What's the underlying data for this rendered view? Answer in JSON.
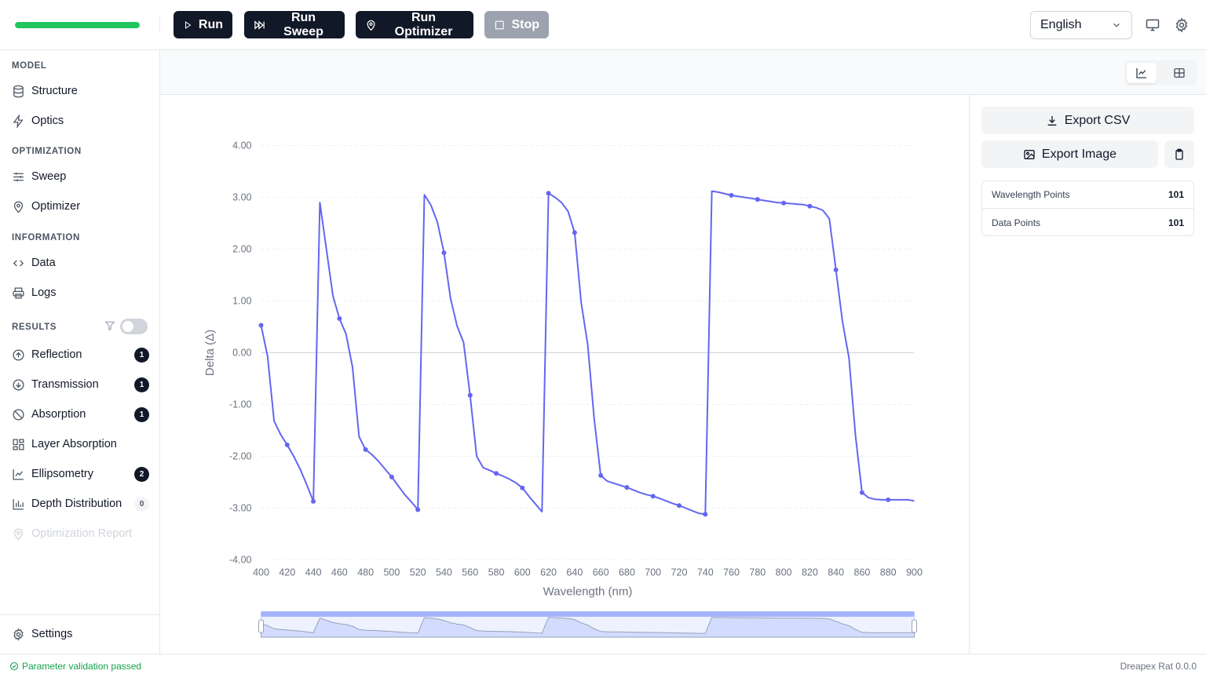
{
  "toolbar": {
    "progress_fraction": 1.0,
    "run_label": "Run",
    "run_sweep_label": "Run Sweep",
    "run_optimizer_label": "Run Optimizer",
    "stop_label": "Stop",
    "language": "English"
  },
  "sidebar": {
    "model_section": "MODEL",
    "model_items": [
      {
        "label": "Structure"
      },
      {
        "label": "Optics"
      }
    ],
    "optimization_section": "OPTIMIZATION",
    "optimization_items": [
      {
        "label": "Sweep"
      },
      {
        "label": "Optimizer"
      }
    ],
    "information_section": "INFORMATION",
    "information_items": [
      {
        "label": "Data"
      },
      {
        "label": "Logs"
      }
    ],
    "results_section": "RESULTS",
    "results_items": [
      {
        "label": "Reflection",
        "badge": "1"
      },
      {
        "label": "Transmission",
        "badge": "1"
      },
      {
        "label": "Absorption",
        "badge": "1"
      },
      {
        "label": "Layer Absorption",
        "badge": ""
      },
      {
        "label": "Ellipsometry",
        "badge": "2"
      },
      {
        "label": "Depth Distribution",
        "badge": "0"
      },
      {
        "label": "Optimization Report",
        "badge": ""
      }
    ],
    "settings_label": "Settings"
  },
  "right_panel": {
    "export_csv": "Export CSV",
    "export_image": "Export Image",
    "stats": [
      {
        "label": "Wavelength Points",
        "value": "101"
      },
      {
        "label": "Data Points",
        "value": "101"
      }
    ]
  },
  "status": {
    "message": "Parameter validation passed",
    "version": "Dreapex Rat 0.0.0"
  },
  "colors": {
    "accent": "#6366f1",
    "progress": "#22c55e",
    "primary_button": "#111827",
    "status_ok": "#16a34a"
  },
  "chart_data": {
    "type": "line",
    "xlabel": "Wavelength (nm)",
    "ylabel": "Delta (Δ)",
    "xlim": [
      400,
      900
    ],
    "ylim": [
      -4,
      4
    ],
    "x_ticks": [
      "400",
      "420",
      "440",
      "460",
      "480",
      "500",
      "520",
      "540",
      "560",
      "580",
      "600",
      "620",
      "640",
      "660",
      "680",
      "700",
      "720",
      "740",
      "760",
      "780",
      "800",
      "820",
      "840",
      "860",
      "880",
      "900"
    ],
    "y_ticks": [
      "4.00",
      "3.00",
      "2.00",
      "1.00",
      "0.00",
      "-1.00",
      "-2.00",
      "-3.00",
      "-4.00"
    ],
    "grid": true,
    "series": [
      {
        "name": "",
        "color": "#6366f1",
        "x": [
          400,
          405,
          410,
          415,
          420,
          425,
          430,
          435,
          440,
          445,
          450,
          455,
          460,
          465,
          470,
          475,
          480,
          485,
          490,
          495,
          500,
          505,
          510,
          515,
          520,
          525,
          530,
          535,
          540,
          545,
          550,
          555,
          560,
          565,
          570,
          575,
          580,
          585,
          590,
          595,
          600,
          605,
          610,
          615,
          620,
          625,
          630,
          635,
          640,
          645,
          650,
          655,
          660,
          665,
          670,
          675,
          680,
          685,
          690,
          695,
          700,
          705,
          710,
          715,
          720,
          725,
          730,
          735,
          740,
          745,
          750,
          755,
          760,
          765,
          770,
          775,
          780,
          785,
          790,
          795,
          800,
          805,
          810,
          815,
          820,
          825,
          830,
          835,
          840,
          845,
          850,
          855,
          860,
          865,
          870,
          875,
          880,
          885,
          890,
          895,
          900
        ],
        "y": [
          0.53,
          -0.07,
          -1.32,
          -1.58,
          -1.78,
          -2.0,
          -2.25,
          -2.55,
          -2.87,
          2.9,
          2.0,
          1.1,
          0.66,
          0.36,
          -0.28,
          -1.62,
          -1.87,
          -1.97,
          -2.1,
          -2.25,
          -2.4,
          -2.57,
          -2.74,
          -2.88,
          -3.03,
          3.05,
          2.85,
          2.52,
          1.93,
          1.05,
          0.52,
          0.2,
          -0.82,
          -2.0,
          -2.22,
          -2.27,
          -2.33,
          -2.38,
          -2.44,
          -2.51,
          -2.61,
          -2.77,
          -2.92,
          -3.07,
          3.08,
          3.0,
          2.9,
          2.73,
          2.32,
          0.97,
          0.16,
          -1.28,
          -2.37,
          -2.48,
          -2.52,
          -2.56,
          -2.6,
          -2.65,
          -2.7,
          -2.74,
          -2.77,
          -2.81,
          -2.86,
          -2.91,
          -2.95,
          -3.0,
          -3.05,
          -3.1,
          -3.12,
          3.12,
          3.1,
          3.07,
          3.04,
          3.02,
          3.0,
          2.98,
          2.96,
          2.94,
          2.92,
          2.9,
          2.89,
          2.88,
          2.87,
          2.86,
          2.83,
          2.8,
          2.75,
          2.59,
          1.6,
          0.6,
          -0.1,
          -1.6,
          -2.7,
          -2.8,
          -2.83,
          -2.84,
          -2.84,
          -2.84,
          -2.84,
          -2.84,
          -2.86
        ]
      }
    ],
    "markers_at": [
      400,
      420,
      440,
      460,
      480,
      500,
      520,
      540,
      560,
      580,
      600,
      620,
      640,
      660,
      680,
      700,
      720,
      740,
      760,
      780,
      800,
      820,
      840,
      860,
      880
    ]
  }
}
